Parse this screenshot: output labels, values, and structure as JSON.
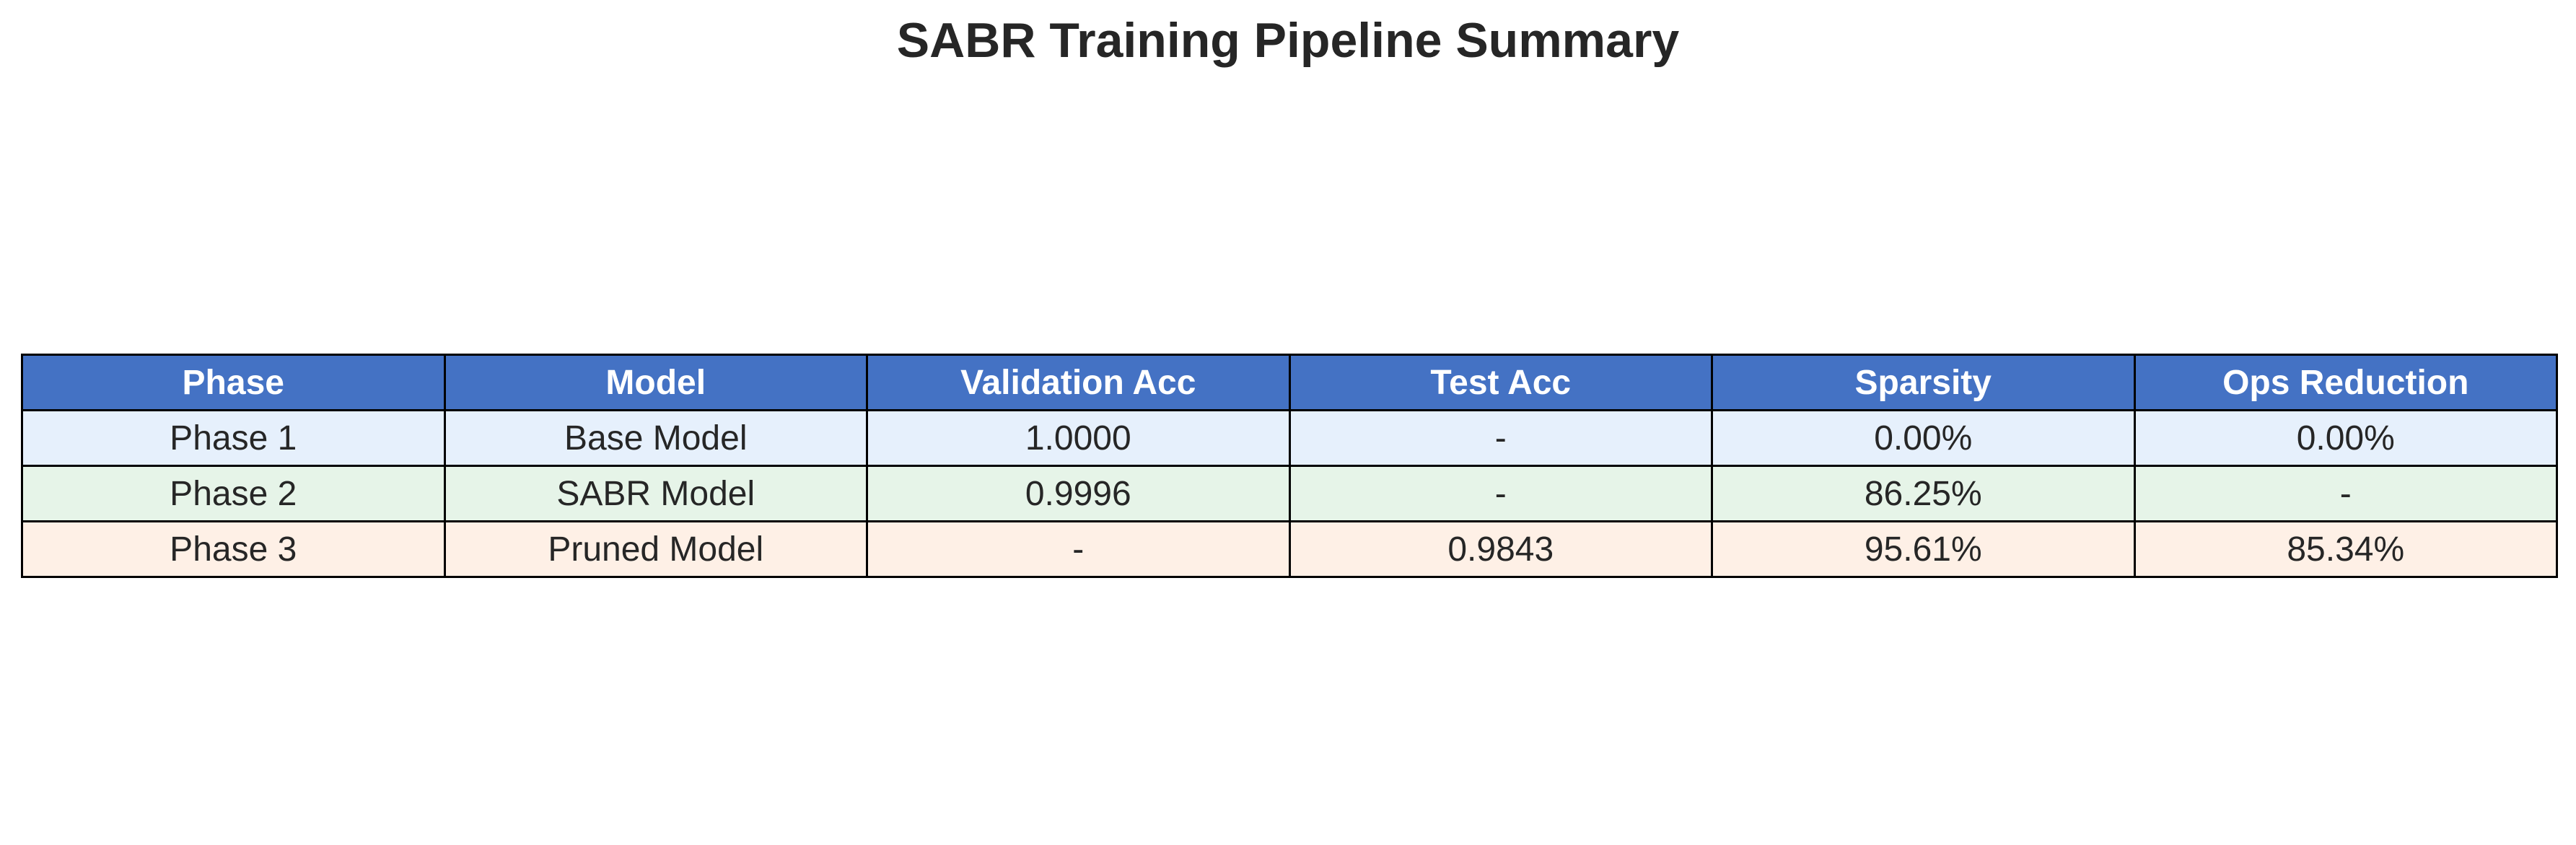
{
  "chart_data": {
    "type": "table",
    "title": "SABR Training Pipeline Summary",
    "columns": [
      "Phase",
      "Model",
      "Validation Acc",
      "Test Acc",
      "Sparsity",
      "Ops Reduction"
    ],
    "rows": [
      [
        "Phase 1",
        "Base Model",
        "1.0000",
        "-",
        "0.00%",
        "0.00%"
      ],
      [
        "Phase 2",
        "SABR Model",
        "0.9996",
        "-",
        "86.25%",
        "-"
      ],
      [
        "Phase 3",
        "Pruned Model",
        "-",
        "0.9843",
        "95.61%",
        "85.34%"
      ]
    ],
    "colors": {
      "header_background": "#4472C4",
      "header_text": "#ffffff",
      "row_backgrounds": [
        "#E6F0FC",
        "#E6F4E8",
        "#FEF0E6"
      ],
      "border": "#000000"
    }
  }
}
